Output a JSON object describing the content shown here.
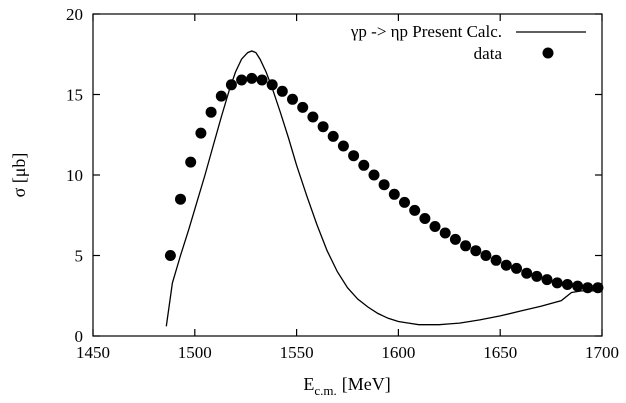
{
  "chart_data": {
    "type": "line",
    "xlabel": "E",
    "xlabel_sub": "c.m.",
    "xlabel_unit": "[MeV]",
    "ylabel": "σ [μb]",
    "xlim": [
      1450,
      1700
    ],
    "ylim": [
      0,
      20
    ],
    "xticks": [
      1450,
      1500,
      1550,
      1600,
      1650,
      1700
    ],
    "yticks": [
      0,
      5,
      10,
      15,
      20
    ],
    "grid": false,
    "legend": "top-right",
    "series": [
      {
        "name": "γp -> ηp Present Calc.",
        "kind": "line",
        "color": "#000000",
        "x": [
          1486,
          1489,
          1493,
          1497,
          1501,
          1505,
          1509,
          1513,
          1517,
          1520,
          1523,
          1526,
          1528,
          1530,
          1532,
          1535,
          1538,
          1542,
          1546,
          1550,
          1555,
          1560,
          1565,
          1570,
          1575,
          1580,
          1585,
          1590,
          1595,
          1600,
          1605,
          1610,
          1615,
          1620,
          1625,
          1630,
          1640,
          1650,
          1660,
          1670,
          1680,
          1685,
          1690,
          1695,
          1700
        ],
        "y": [
          0.6,
          3.3,
          5.0,
          6.6,
          8.3,
          10.0,
          11.8,
          13.6,
          15.3,
          16.4,
          17.2,
          17.6,
          17.7,
          17.6,
          17.2,
          16.4,
          15.4,
          13.9,
          12.3,
          10.6,
          8.7,
          6.9,
          5.3,
          4.0,
          3.0,
          2.3,
          1.8,
          1.4,
          1.1,
          0.9,
          0.8,
          0.7,
          0.7,
          0.7,
          0.75,
          0.8,
          1.0,
          1.25,
          1.55,
          1.85,
          2.2,
          2.7,
          2.8,
          2.8,
          2.8
        ]
      },
      {
        "name": "data",
        "kind": "scatter",
        "color": "#000000",
        "x": [
          1488,
          1493,
          1498,
          1503,
          1508,
          1513,
          1518,
          1523,
          1528,
          1533,
          1538,
          1543,
          1548,
          1553,
          1558,
          1563,
          1568,
          1573,
          1578,
          1583,
          1588,
          1593,
          1598,
          1603,
          1608,
          1613,
          1618,
          1623,
          1628,
          1633,
          1638,
          1643,
          1648,
          1653,
          1658,
          1663,
          1668,
          1673,
          1678,
          1683,
          1688,
          1693,
          1698
        ],
        "y": [
          5.0,
          8.5,
          10.8,
          12.6,
          13.9,
          14.9,
          15.6,
          15.9,
          16.0,
          15.9,
          15.6,
          15.2,
          14.7,
          14.2,
          13.6,
          13.0,
          12.4,
          11.8,
          11.2,
          10.6,
          10.0,
          9.4,
          8.8,
          8.3,
          7.8,
          7.3,
          6.8,
          6.4,
          6.0,
          5.6,
          5.3,
          5.0,
          4.7,
          4.4,
          4.2,
          3.9,
          3.7,
          3.5,
          3.3,
          3.2,
          3.1,
          3.0,
          3.0
        ]
      }
    ]
  }
}
